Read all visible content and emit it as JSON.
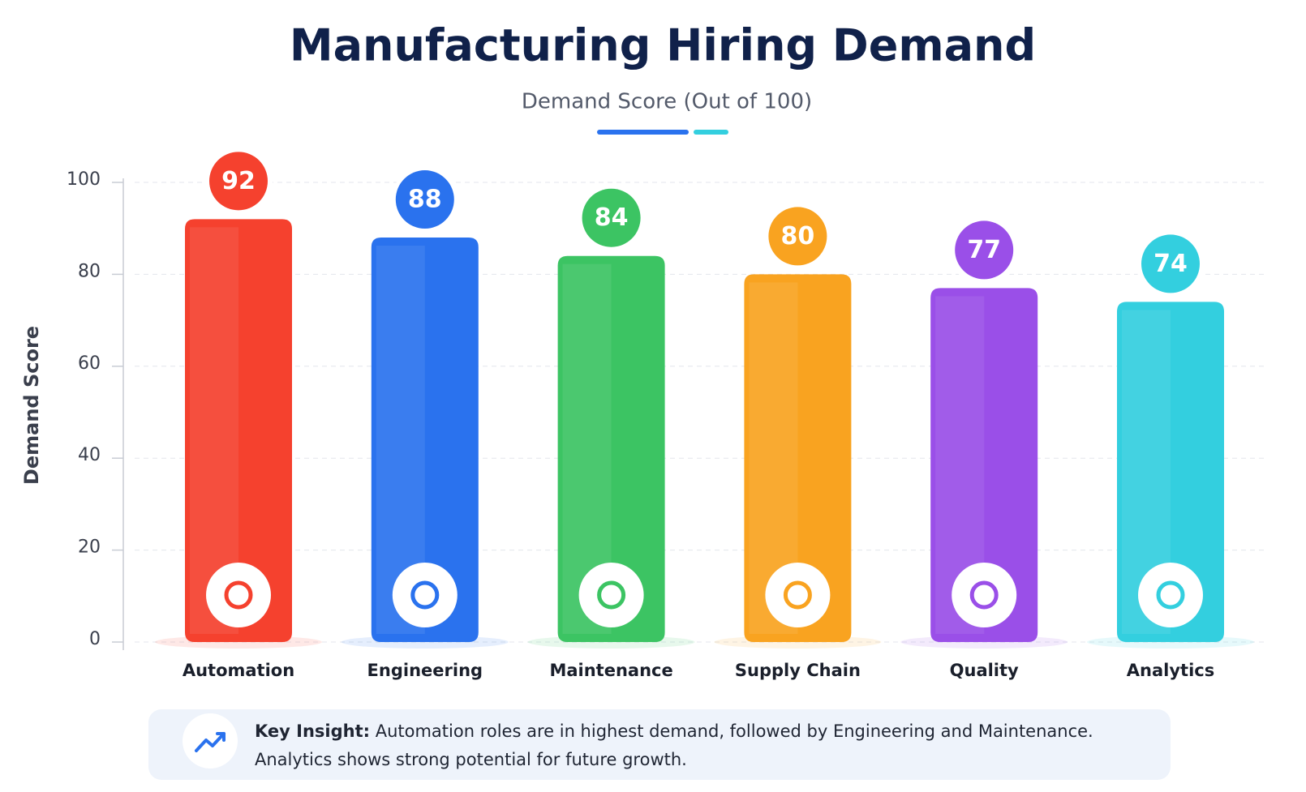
{
  "chart_data": {
    "type": "bar",
    "title": "Manufacturing Hiring Demand",
    "subtitle": "Demand Score (Out of 100)",
    "y_label": "Demand Score",
    "categories": [
      "Automation",
      "Engineering",
      "Maintenance",
      "Supply Chain",
      "Quality",
      "Analytics"
    ],
    "values": [
      92,
      88,
      84,
      80,
      77,
      74
    ],
    "colors": [
      "#f5412e",
      "#2a72ee",
      "#3cc463",
      "#f9a320",
      "#9a4fe8",
      "#33cfdf"
    ],
    "ylim": [
      0,
      100
    ],
    "yticks": [
      0,
      20,
      40,
      60,
      80,
      100
    ],
    "grid": true
  },
  "insight": {
    "label": "Key Insight:",
    "lines": [
      "Automation roles are in highest demand, followed by Engineering and Maintenance.",
      "Analytics shows strong potential for future growth."
    ]
  }
}
